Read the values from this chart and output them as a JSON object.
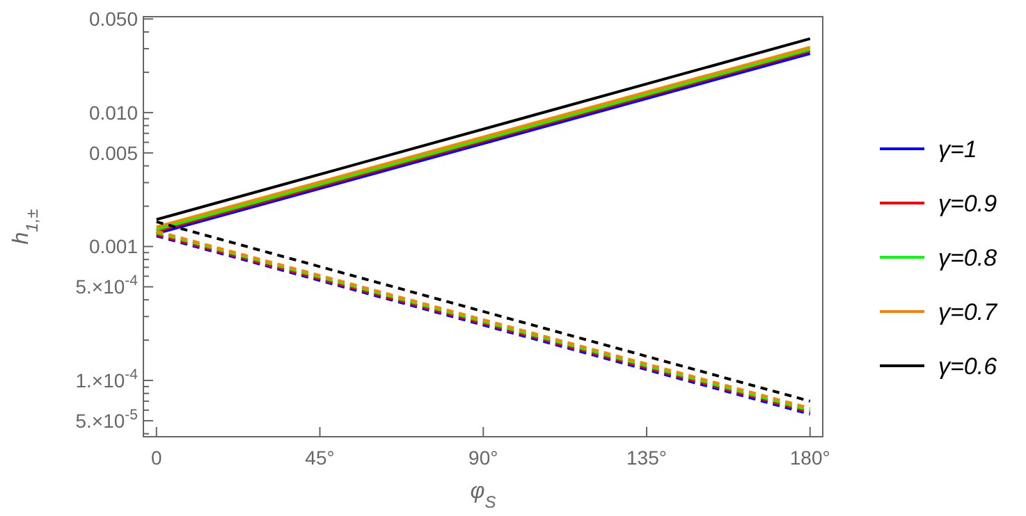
{
  "chart_data": {
    "type": "line",
    "xlabel": "φ$_{S}$",
    "ylabel": "h$_{1,±}$",
    "x": [
      0,
      180
    ],
    "xlim": [
      -3.6,
      183.5
    ],
    "ylim": [
      3.8e-05,
      0.052
    ],
    "log": "y",
    "legend": "right",
    "grid": false,
    "xticks": [
      0,
      {
        "value": 45,
        "label": "45°"
      },
      {
        "value": 90,
        "label": "90°"
      },
      {
        "value": 135,
        "label": "135°"
      },
      {
        "value": 180,
        "label": "180°"
      }
    ],
    "yticks": [
      {
        "value": 0.05,
        "label": "0.050"
      },
      {
        "value": 0.04,
        "label": null
      },
      {
        "value": 0.03,
        "label": null
      },
      {
        "value": 0.02,
        "label": null
      },
      {
        "value": 0.01,
        "label": "0.010"
      },
      {
        "value": 0.009,
        "label": null
      },
      {
        "value": 0.008,
        "label": null
      },
      {
        "value": 0.007,
        "label": null
      },
      {
        "value": 0.006,
        "label": null
      },
      {
        "value": 0.005,
        "label": "0.005"
      },
      {
        "value": 0.004,
        "label": null
      },
      {
        "value": 0.003,
        "label": null
      },
      {
        "value": 0.002,
        "label": null
      },
      {
        "value": 0.001,
        "label": "0.001"
      },
      {
        "value": 0.0009,
        "label": null
      },
      {
        "value": 0.0008,
        "label": null
      },
      {
        "value": 0.0007,
        "label": null
      },
      {
        "value": 0.0006,
        "label": null
      },
      {
        "value": 0.0005,
        "label": "5.×10$^{-4}$"
      },
      {
        "value": 0.0004,
        "label": null
      },
      {
        "value": 0.0003,
        "label": null
      },
      {
        "value": 0.0002,
        "label": null
      },
      {
        "value": 0.0001,
        "label": "1.×10$^{-4}$"
      },
      {
        "value": 9e-05,
        "label": null
      },
      {
        "value": 8e-05,
        "label": null
      },
      {
        "value": 7e-05,
        "label": null
      },
      {
        "value": 6e-05,
        "label": null
      },
      {
        "value": 5e-05,
        "label": "5.×10$^{-5}$"
      },
      {
        "value": 4e-05,
        "label": null
      }
    ],
    "series": [
      {
        "name": "γ=1",
        "color": "#0000ff",
        "values": [
          0.00125,
          0.0276
        ],
        "line_style": "solid"
      },
      {
        "name": "γ=0.9",
        "color": "#ff0000",
        "values": [
          0.0013,
          0.0288
        ],
        "line_style": "solid"
      },
      {
        "name": "γ=0.8",
        "color": "#00ff00",
        "values": [
          0.00134,
          0.0296
        ],
        "line_style": "solid"
      },
      {
        "name": "γ=0.7",
        "color": "#ff8000",
        "values": [
          0.0014,
          0.0308
        ],
        "line_style": "solid"
      },
      {
        "name": "γ=0.6",
        "color": "#000000",
        "values": [
          0.00159,
          0.0356
        ],
        "line_style": "solid"
      },
      {
        "color": "#0000ff",
        "values": [
          0.0012,
          5.6e-05
        ],
        "line_style": "dashed"
      },
      {
        "color": "#ff0000",
        "values": [
          0.00123,
          5.8e-05
        ],
        "line_style": "dashed"
      },
      {
        "color": "#00ff00",
        "values": [
          0.00127,
          5.98e-05
        ],
        "line_style": "dashed"
      },
      {
        "color": "#ff8000",
        "values": [
          0.0013,
          6.2e-05
        ],
        "line_style": "dashed"
      },
      {
        "color": "#000000",
        "values": [
          0.00153,
          7e-05
        ],
        "line_style": "dashed"
      }
    ]
  }
}
